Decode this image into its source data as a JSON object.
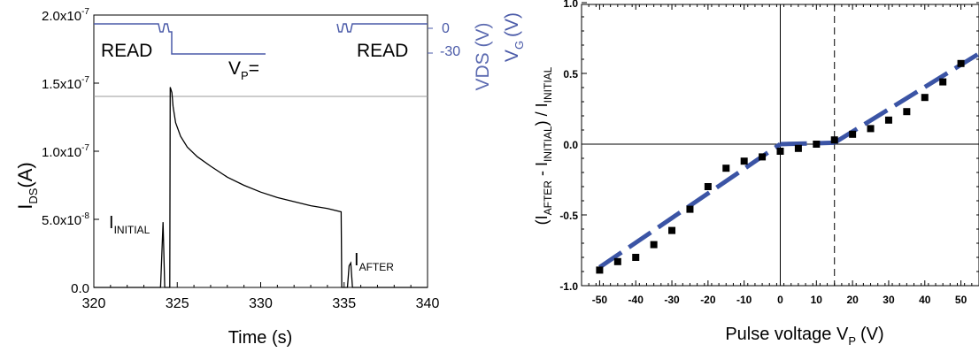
{
  "chart_data": [
    {
      "type": "line",
      "xlabel": "Time (s)",
      "ylabel_main": "I",
      "ylabel_sub": "DS",
      "ylabel_unit": "(A)",
      "xlim": [
        320,
        340
      ],
      "ylim": [
        0,
        2e-07
      ],
      "x_ticks": [
        320,
        325,
        330,
        335,
        340
      ],
      "x_tick_labels": [
        "320",
        "325",
        "330",
        "335",
        "340"
      ],
      "y_tick_values": [
        0,
        5e-08,
        1e-07,
        1.5e-07,
        2e-07
      ],
      "y_tick_mantissas": [
        "0.0",
        "5.0x10",
        "1.0x10",
        "1.5x10",
        "2.0x10"
      ],
      "y_tick_exponents": [
        "",
        "-8",
        "-7",
        "-7",
        "-7"
      ],
      "series": [
        {
          "color": "#000000",
          "x": [
            320,
            324.0,
            324.15,
            324.25,
            324.4,
            324.55,
            324.58,
            324.68,
            324.75,
            324.9,
            325.2,
            325.6,
            326.2,
            327,
            328,
            329,
            330,
            331,
            332,
            333,
            334,
            334.82,
            334.86,
            335.0,
            335.1,
            335.2,
            335.3,
            335.4,
            335.5,
            340
          ],
          "y": [
            0,
            0,
            4.8e-08,
            0,
            0,
            0,
            1.47e-07,
            1.43e-07,
            1.33e-07,
            1.21e-07,
            1.11e-07,
            1.03e-07,
            9.6e-08,
            8.9e-08,
            8.1e-08,
            7.5e-08,
            7e-08,
            6.6e-08,
            6.3e-08,
            6e-08,
            5.8e-08,
            5.55e-08,
            0,
            0,
            0,
            0,
            1.6e-08,
            1.8e-08,
            0,
            0
          ]
        }
      ],
      "inset": {
        "axis_label_main": "V",
        "axis_label_sub": "G",
        "axis_label_unit": "(V)",
        "axis_label_hidden": "VDS (V)",
        "tick_labels": [
          "0",
          "-30"
        ],
        "color": "#4a5aa8",
        "read_label": "READ",
        "vp_main": "V",
        "vp_sub": "P",
        "vp_suffix": "="
      },
      "annotations": [
        {
          "main": "I",
          "sub": "INITIAL"
        },
        {
          "main": "I",
          "sub": "AFTER"
        }
      ]
    },
    {
      "type": "scatter",
      "xlabel_main": "Pulse voltage V",
      "xlabel_sub": "P",
      "xlabel_unit": "(V)",
      "ylabel_parts": [
        "(I",
        "AFTER",
        " - I",
        "INITIAL",
        ") / I",
        "INITIAL"
      ],
      "xlim": [
        -55,
        55
      ],
      "ylim": [
        -1.0,
        0.65
      ],
      "x_ticks": [
        -50,
        -40,
        -30,
        -20,
        -10,
        0,
        10,
        20,
        30,
        40,
        50
      ],
      "x_tick_labels": [
        "-50",
        "-40",
        "-30",
        "-20",
        "-10",
        "0",
        "10",
        "20",
        "30",
        "40",
        "50"
      ],
      "y_ticks": [
        -1.0,
        -0.5,
        0.0,
        0.5,
        1.0
      ],
      "y_tick_labels": [
        "-1.0",
        "-0.5",
        "0.0",
        "0.5",
        "1.0"
      ],
      "reference_lines": {
        "vertical_solid": 0,
        "horizontal_solid": 0,
        "vertical_dashed": 15
      },
      "points": {
        "x": [
          -50,
          -45,
          -40,
          -35,
          -30,
          -25,
          -20,
          -15,
          -10,
          -5,
          0,
          5,
          10,
          15,
          20,
          25,
          30,
          35,
          40,
          45,
          50
        ],
        "y": [
          -0.89,
          -0.83,
          -0.8,
          -0.71,
          -0.61,
          -0.46,
          -0.3,
          -0.17,
          -0.12,
          -0.09,
          -0.05,
          -0.03,
          0.0,
          0.03,
          0.07,
          0.11,
          0.17,
          0.23,
          0.33,
          0.44,
          0.57
        ]
      },
      "fit_segments": [
        {
          "x": [
            -50,
            0
          ],
          "y": [
            -0.87,
            0.0
          ]
        },
        {
          "x": [
            0,
            15
          ],
          "y": [
            0.0,
            0.01
          ]
        },
        {
          "x": [
            15,
            55
          ],
          "y": [
            0.01,
            0.64
          ]
        }
      ],
      "fit_color": "#3b54a5"
    }
  ]
}
